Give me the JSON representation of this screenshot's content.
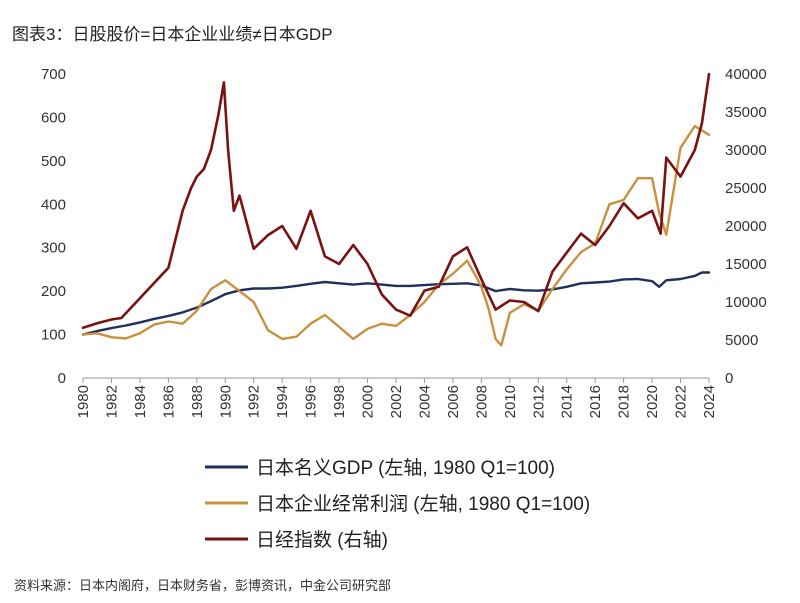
{
  "header": {
    "title": "图表3：日股股价=日本企业业绩≠日本GDP"
  },
  "footer": {
    "source": "资料来源：日本内阁府，日本财务省，彭博资讯，中金公司研究部"
  },
  "colors": {
    "gdp": "#1f2f5e",
    "profit": "#c9913d",
    "nikkei": "#7a1212"
  },
  "chart_data": {
    "type": "line",
    "title": "",
    "xlabel": "",
    "ylabel": "",
    "xlim": [
      1980,
      2024
    ],
    "ylim_left": [
      0,
      700
    ],
    "ylim_right": [
      0,
      40000
    ],
    "x_ticks": [
      "1980",
      "1982",
      "1984",
      "1986",
      "1988",
      "1990",
      "1992",
      "1994",
      "1996",
      "1998",
      "2000",
      "2002",
      "2004",
      "2006",
      "2008",
      "2010",
      "2012",
      "2014",
      "2016",
      "2018",
      "2020",
      "2022",
      "2024"
    ],
    "y_left_ticks": [
      "0",
      "100",
      "200",
      "300",
      "400",
      "500",
      "600",
      "700"
    ],
    "y_right_ticks": [
      "0",
      "5000",
      "10000",
      "15000",
      "20000",
      "25000",
      "30000",
      "35000",
      "40000"
    ],
    "legend_position": "bottom",
    "series": [
      {
        "name": "日本名义GDP (左轴, 1980 Q1=100)",
        "axis": "left",
        "x": [
          1980,
          1981,
          1982,
          1983,
          1984,
          1985,
          1986,
          1987,
          1988,
          1989,
          1990,
          1991,
          1992,
          1993,
          1994,
          1995,
          1996,
          1997,
          1998,
          1999,
          2000,
          2001,
          2002,
          2003,
          2004,
          2005,
          2006,
          2007,
          2008,
          2009,
          2010,
          2011,
          2012,
          2013,
          2014,
          2015,
          2016,
          2017,
          2018,
          2019,
          2020,
          2020.5,
          2021,
          2022,
          2023,
          2023.5,
          2024
        ],
        "y": [
          100,
          108,
          115,
          121,
          128,
          136,
          143,
          151,
          162,
          177,
          193,
          202,
          206,
          206,
          208,
          212,
          217,
          221,
          218,
          215,
          218,
          215,
          212,
          212,
          214,
          216,
          217,
          218,
          213,
          200,
          205,
          202,
          201,
          204,
          210,
          218,
          220,
          222,
          227,
          228,
          223,
          210,
          225,
          228,
          235,
          243,
          243
        ]
      },
      {
        "name": "日本企业经常利润 (左轴, 1980 Q1=100)",
        "axis": "left",
        "x": [
          1980,
          1981,
          1982,
          1983,
          1984,
          1985,
          1986,
          1987,
          1988,
          1989,
          1990,
          1991,
          1992,
          1993,
          1994,
          1995,
          1996,
          1997,
          1998,
          1999,
          2000,
          2001,
          2002,
          2003,
          2004,
          2005,
          2006,
          2007,
          2007.6,
          2008,
          2008.5,
          2009,
          2009.4,
          2010,
          2011,
          2012,
          2013,
          2014,
          2015,
          2016,
          2017,
          2018,
          2019,
          2020,
          2020.5,
          2021,
          2022,
          2023,
          2024
        ],
        "y": [
          100,
          103,
          94,
          91,
          103,
          123,
          130,
          125,
          155,
          205,
          225,
          200,
          175,
          110,
          90,
          95,
          125,
          145,
          118,
          90,
          113,
          125,
          120,
          145,
          175,
          215,
          240,
          270,
          235,
          210,
          160,
          90,
          75,
          150,
          170,
          155,
          205,
          250,
          290,
          310,
          400,
          410,
          460,
          460,
          380,
          330,
          530,
          580,
          560
        ]
      },
      {
        "name": "日经指数 (右轴)",
        "axis": "right",
        "x": [
          1980,
          1981,
          1982,
          1982.7,
          1983,
          1984,
          1985,
          1986,
          1987,
          1987.6,
          1988,
          1988.5,
          1989,
          1989.5,
          1989.9,
          1990.2,
          1990.6,
          1991,
          1992,
          1993,
          1994,
          1995,
          1996,
          1997,
          1998,
          1999,
          2000,
          2001,
          2002,
          2003,
          2004,
          2005,
          2006,
          2007,
          2008,
          2009,
          2010,
          2011,
          2012,
          2013,
          2014,
          2015,
          2016,
          2017,
          2018,
          2019,
          2020,
          2020.6,
          2021,
          2022,
          2023,
          2023.5,
          2024
        ],
        "y": [
          6600,
          7200,
          7700,
          7900,
          8500,
          10500,
          12500,
          14500,
          22000,
          25000,
          26500,
          27500,
          30000,
          34500,
          38900,
          30000,
          22000,
          24000,
          17000,
          18800,
          20000,
          17000,
          22000,
          16000,
          15000,
          17500,
          15000,
          11000,
          9000,
          8200,
          11500,
          12000,
          16000,
          17200,
          13000,
          9000,
          10200,
          10000,
          8800,
          14000,
          16500,
          19000,
          17500,
          20000,
          23000,
          21000,
          22000,
          19000,
          29000,
          26500,
          30000,
          33500,
          40000
        ]
      }
    ]
  }
}
